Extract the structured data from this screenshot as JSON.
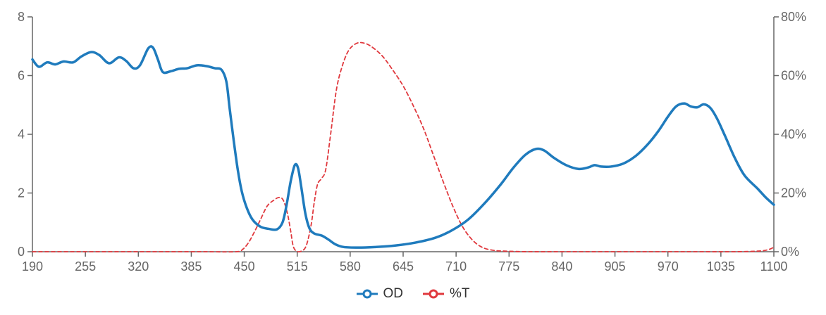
{
  "chart_data": {
    "type": "line",
    "title": "",
    "xlabel": "",
    "ylabel": "",
    "x_ticks": [
      "190",
      "255",
      "320",
      "385",
      "450",
      "515",
      "580",
      "645",
      "710",
      "775",
      "840",
      "905",
      "970",
      "1035",
      "1100"
    ],
    "y_left_ticks": [
      "0",
      "2",
      "4",
      "6",
      "8"
    ],
    "y_right_ticks": [
      "0%",
      "20%",
      "40%",
      "60%",
      "80%"
    ],
    "xlim": [
      190,
      1100
    ],
    "ylim_left": [
      0,
      8
    ],
    "ylim_right": [
      0,
      80
    ],
    "grid": false,
    "legend_position": "bottom-center",
    "series": [
      {
        "name": "OD",
        "axis": "left",
        "color": "#1f7bbd",
        "style": "solid",
        "points": [
          [
            190,
            6.55
          ],
          [
            198,
            6.3
          ],
          [
            208,
            6.45
          ],
          [
            218,
            6.38
          ],
          [
            228,
            6.48
          ],
          [
            240,
            6.45
          ],
          [
            250,
            6.65
          ],
          [
            262,
            6.8
          ],
          [
            272,
            6.7
          ],
          [
            284,
            6.42
          ],
          [
            296,
            6.62
          ],
          [
            305,
            6.5
          ],
          [
            314,
            6.25
          ],
          [
            322,
            6.35
          ],
          [
            332,
            6.92
          ],
          [
            338,
            6.95
          ],
          [
            344,
            6.55
          ],
          [
            350,
            6.12
          ],
          [
            360,
            6.15
          ],
          [
            370,
            6.23
          ],
          [
            380,
            6.25
          ],
          [
            392,
            6.35
          ],
          [
            404,
            6.32
          ],
          [
            414,
            6.25
          ],
          [
            422,
            6.2
          ],
          [
            428,
            5.8
          ],
          [
            432,
            4.9
          ],
          [
            437,
            3.8
          ],
          [
            442,
            2.8
          ],
          [
            447,
            2.05
          ],
          [
            453,
            1.5
          ],
          [
            460,
            1.1
          ],
          [
            470,
            0.85
          ],
          [
            480,
            0.78
          ],
          [
            490,
            0.76
          ],
          [
            497,
            1.0
          ],
          [
            502,
            1.6
          ],
          [
            507,
            2.4
          ],
          [
            512,
            2.95
          ],
          [
            516,
            2.85
          ],
          [
            520,
            2.2
          ],
          [
            525,
            1.3
          ],
          [
            530,
            0.8
          ],
          [
            536,
            0.62
          ],
          [
            545,
            0.55
          ],
          [
            553,
            0.42
          ],
          [
            562,
            0.25
          ],
          [
            572,
            0.16
          ],
          [
            590,
            0.14
          ],
          [
            610,
            0.16
          ],
          [
            635,
            0.21
          ],
          [
            660,
            0.31
          ],
          [
            685,
            0.48
          ],
          [
            705,
            0.73
          ],
          [
            725,
            1.1
          ],
          [
            745,
            1.65
          ],
          [
            765,
            2.3
          ],
          [
            780,
            2.85
          ],
          [
            795,
            3.3
          ],
          [
            808,
            3.5
          ],
          [
            818,
            3.45
          ],
          [
            830,
            3.2
          ],
          [
            845,
            2.95
          ],
          [
            860,
            2.82
          ],
          [
            872,
            2.87
          ],
          [
            880,
            2.95
          ],
          [
            888,
            2.9
          ],
          [
            900,
            2.9
          ],
          [
            915,
            3.0
          ],
          [
            930,
            3.25
          ],
          [
            945,
            3.65
          ],
          [
            958,
            4.1
          ],
          [
            970,
            4.6
          ],
          [
            980,
            4.95
          ],
          [
            990,
            5.05
          ],
          [
            998,
            4.95
          ],
          [
            1006,
            4.92
          ],
          [
            1014,
            5.02
          ],
          [
            1022,
            4.9
          ],
          [
            1030,
            4.55
          ],
          [
            1040,
            3.95
          ],
          [
            1052,
            3.2
          ],
          [
            1064,
            2.6
          ],
          [
            1080,
            2.15
          ],
          [
            1090,
            1.85
          ],
          [
            1100,
            1.6
          ]
        ]
      },
      {
        "name": "%T",
        "axis": "right",
        "color": "#e0393e",
        "style": "dashed",
        "points": [
          [
            190,
            0
          ],
          [
            250,
            0
          ],
          [
            300,
            0
          ],
          [
            350,
            0
          ],
          [
            400,
            0
          ],
          [
            440,
            0
          ],
          [
            448,
            0.8
          ],
          [
            455,
            3
          ],
          [
            462,
            6.5
          ],
          [
            470,
            11
          ],
          [
            478,
            15.5
          ],
          [
            486,
            17.5
          ],
          [
            493,
            18.5
          ],
          [
            498,
            17.5
          ],
          [
            503,
            13
          ],
          [
            507,
            7
          ],
          [
            510,
            2
          ],
          [
            514,
            0.2
          ],
          [
            520,
            0.2
          ],
          [
            526,
            2
          ],
          [
            532,
            9
          ],
          [
            536,
            17
          ],
          [
            540,
            23
          ],
          [
            545,
            25
          ],
          [
            550,
            28
          ],
          [
            556,
            40
          ],
          [
            563,
            55
          ],
          [
            570,
            63
          ],
          [
            578,
            68.5
          ],
          [
            588,
            71
          ],
          [
            598,
            71
          ],
          [
            608,
            69.5
          ],
          [
            620,
            66.5
          ],
          [
            632,
            62
          ],
          [
            645,
            56.5
          ],
          [
            657,
            50
          ],
          [
            670,
            42
          ],
          [
            682,
            33
          ],
          [
            694,
            24
          ],
          [
            706,
            15.5
          ],
          [
            718,
            8.5
          ],
          [
            730,
            4
          ],
          [
            742,
            1.5
          ],
          [
            755,
            0.5
          ],
          [
            770,
            0.2
          ],
          [
            800,
            0
          ],
          [
            850,
            0
          ],
          [
            900,
            0
          ],
          [
            950,
            0
          ],
          [
            1000,
            0
          ],
          [
            1050,
            0
          ],
          [
            1080,
            0.2
          ],
          [
            1092,
            0.6
          ],
          [
            1100,
            1.5
          ]
        ]
      }
    ]
  }
}
